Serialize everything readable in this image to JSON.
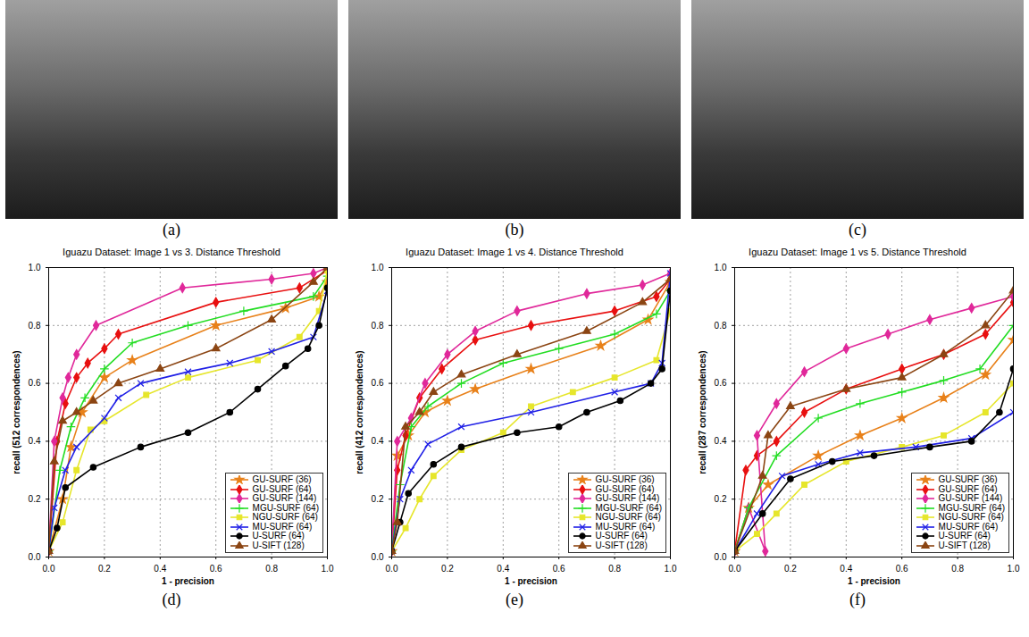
{
  "figure": {
    "image_panels": [
      "(a)",
      "(b)",
      "(c)"
    ]
  },
  "chart_data": [
    {
      "type": "line",
      "caption": "(d)",
      "title": "Iguazu Dataset: Image 1 vs 3. Distance Threshold",
      "x_label": "1 - precision",
      "y_label": "recall (512 correspondences)",
      "xlim": [
        0,
        1
      ],
      "ylim": [
        0,
        1
      ],
      "xticks": [
        0,
        0.2,
        0.4,
        0.6,
        0.8,
        1
      ],
      "yticks": [
        0,
        0.2,
        0.4,
        0.6,
        0.8,
        1
      ],
      "grid": true,
      "legend": "lower right",
      "series": [
        {
          "name": "GU-SURF (36)",
          "color": "#e8811a",
          "marker": "star",
          "x": [
            0,
            0.05,
            0.08,
            0.12,
            0.2,
            0.3,
            0.6,
            0.85,
            0.97,
            1
          ],
          "values": [
            0.02,
            0.2,
            0.38,
            0.5,
            0.62,
            0.68,
            0.8,
            0.86,
            0.9,
            0.95
          ]
        },
        {
          "name": "GU-SURF (64)",
          "color": "#e81010",
          "marker": "diamond",
          "x": [
            0,
            0.03,
            0.06,
            0.1,
            0.14,
            0.2,
            0.25,
            0.6,
            0.9,
            1
          ],
          "values": [
            0.02,
            0.4,
            0.53,
            0.62,
            0.67,
            0.72,
            0.77,
            0.88,
            0.93,
            0.99
          ]
        },
        {
          "name": "GU-SURF (144)",
          "color": "#e0289a",
          "marker": "diamond",
          "x": [
            0,
            0.02,
            0.05,
            0.07,
            0.1,
            0.17,
            0.48,
            0.8,
            0.95,
            1
          ],
          "values": [
            0.02,
            0.4,
            0.55,
            0.62,
            0.7,
            0.8,
            0.93,
            0.96,
            0.98,
            1
          ]
        },
        {
          "name": "MGU-SURF (64)",
          "color": "#22dd22",
          "marker": "plus",
          "x": [
            0,
            0.04,
            0.08,
            0.13,
            0.2,
            0.3,
            0.5,
            0.7,
            0.95,
            1
          ],
          "values": [
            0.02,
            0.3,
            0.45,
            0.55,
            0.65,
            0.74,
            0.8,
            0.85,
            0.9,
            0.97
          ]
        },
        {
          "name": "NGU-SURF (64)",
          "color": "#e6e62b",
          "marker": "square",
          "x": [
            0,
            0.05,
            0.1,
            0.15,
            0.2,
            0.35,
            0.5,
            0.75,
            0.9,
            0.97,
            1
          ],
          "values": [
            0.02,
            0.12,
            0.3,
            0.44,
            0.47,
            0.56,
            0.62,
            0.68,
            0.76,
            0.85,
            0.99
          ]
        },
        {
          "name": "MU-SURF (64)",
          "color": "#1f1fe6",
          "marker": "times",
          "x": [
            0,
            0.02,
            0.06,
            0.1,
            0.2,
            0.25,
            0.33,
            0.5,
            0.65,
            0.8,
            0.95,
            1
          ],
          "values": [
            0.02,
            0.17,
            0.3,
            0.38,
            0.48,
            0.55,
            0.6,
            0.64,
            0.67,
            0.71,
            0.76,
            0.92
          ]
        },
        {
          "name": "U-SURF (64)",
          "color": "#000000",
          "marker": "circle",
          "x": [
            0,
            0.03,
            0.06,
            0.16,
            0.33,
            0.5,
            0.65,
            0.75,
            0.85,
            0.93,
            0.97,
            1
          ],
          "values": [
            0.02,
            0.1,
            0.24,
            0.31,
            0.38,
            0.43,
            0.5,
            0.58,
            0.66,
            0.72,
            0.8,
            0.93
          ]
        },
        {
          "name": "U-SIFT (128)",
          "color": "#8b4513",
          "marker": "triangle",
          "x": [
            0,
            0.02,
            0.05,
            0.1,
            0.16,
            0.25,
            0.4,
            0.6,
            0.8,
            0.95,
            1
          ],
          "values": [
            0.02,
            0.33,
            0.47,
            0.5,
            0.54,
            0.6,
            0.65,
            0.72,
            0.82,
            0.95,
            1
          ]
        }
      ]
    },
    {
      "type": "line",
      "caption": "(e)",
      "title": "Iguazu Dataset: Image 1 vs 4. Distance Threshold",
      "x_label": "1 - precision",
      "y_label": "recall (412 correspondences)",
      "xlim": [
        0,
        1
      ],
      "ylim": [
        0,
        1
      ],
      "xticks": [
        0,
        0.2,
        0.4,
        0.6,
        0.8,
        1
      ],
      "yticks": [
        0,
        0.2,
        0.4,
        0.6,
        0.8,
        1
      ],
      "grid": true,
      "legend": "lower right",
      "series": [
        {
          "name": "GU-SURF (36)",
          "color": "#e8811a",
          "marker": "star",
          "x": [
            0,
            0.02,
            0.06,
            0.12,
            0.2,
            0.3,
            0.5,
            0.75,
            0.92,
            1
          ],
          "values": [
            0.02,
            0.35,
            0.42,
            0.5,
            0.54,
            0.58,
            0.65,
            0.73,
            0.82,
            0.95
          ]
        },
        {
          "name": "GU-SURF (64)",
          "color": "#e81010",
          "marker": "diamond",
          "x": [
            0,
            0.02,
            0.05,
            0.1,
            0.18,
            0.3,
            0.5,
            0.8,
            0.95,
            1
          ],
          "values": [
            0.02,
            0.3,
            0.42,
            0.55,
            0.65,
            0.75,
            0.8,
            0.85,
            0.9,
            0.96
          ]
        },
        {
          "name": "GU-SURF (144)",
          "color": "#e0289a",
          "marker": "diamond",
          "x": [
            0,
            0.02,
            0.07,
            0.12,
            0.2,
            0.3,
            0.45,
            0.7,
            0.9,
            1
          ],
          "values": [
            0.02,
            0.4,
            0.48,
            0.6,
            0.7,
            0.78,
            0.85,
            0.91,
            0.94,
            0.98
          ]
        },
        {
          "name": "MGU-SURF (64)",
          "color": "#22dd22",
          "marker": "plus",
          "x": [
            0,
            0.03,
            0.07,
            0.13,
            0.25,
            0.4,
            0.6,
            0.8,
            0.95,
            1
          ],
          "values": [
            0.02,
            0.25,
            0.45,
            0.52,
            0.6,
            0.67,
            0.72,
            0.77,
            0.84,
            0.92
          ]
        },
        {
          "name": "NGU-SURF (64)",
          "color": "#e6e62b",
          "marker": "square",
          "x": [
            0,
            0.05,
            0.1,
            0.15,
            0.25,
            0.4,
            0.5,
            0.65,
            0.8,
            0.95,
            1
          ],
          "values": [
            0.02,
            0.1,
            0.2,
            0.28,
            0.37,
            0.43,
            0.52,
            0.57,
            0.62,
            0.68,
            0.85
          ]
        },
        {
          "name": "MU-SURF (64)",
          "color": "#1f1fe6",
          "marker": "times",
          "x": [
            0,
            0.03,
            0.07,
            0.13,
            0.25,
            0.5,
            0.8,
            0.93,
            0.97,
            1
          ],
          "values": [
            0.02,
            0.2,
            0.3,
            0.39,
            0.45,
            0.5,
            0.57,
            0.6,
            0.67,
            0.98
          ]
        },
        {
          "name": "U-SURF (64)",
          "color": "#000000",
          "marker": "circle",
          "x": [
            0,
            0.03,
            0.06,
            0.15,
            0.25,
            0.45,
            0.6,
            0.7,
            0.82,
            0.93,
            0.97,
            1
          ],
          "values": [
            0.02,
            0.12,
            0.22,
            0.32,
            0.38,
            0.43,
            0.45,
            0.5,
            0.54,
            0.6,
            0.65,
            0.92
          ]
        },
        {
          "name": "U-SIFT (128)",
          "color": "#8b4513",
          "marker": "triangle",
          "x": [
            0,
            0.02,
            0.05,
            0.1,
            0.15,
            0.25,
            0.45,
            0.7,
            0.9,
            1
          ],
          "values": [
            0.02,
            0.12,
            0.45,
            0.5,
            0.57,
            0.63,
            0.7,
            0.78,
            0.88,
            0.96
          ]
        }
      ]
    },
    {
      "type": "line",
      "caption": "(f)",
      "title": "Iguazu Dataset: Image 1 vs 5. Distance Threshold",
      "x_label": "1 - precision",
      "y_label": "recall (287 correspondences)",
      "xlim": [
        0,
        1
      ],
      "ylim": [
        0,
        1
      ],
      "xticks": [
        0,
        0.2,
        0.4,
        0.6,
        0.8,
        1
      ],
      "yticks": [
        0,
        0.2,
        0.4,
        0.6,
        0.8,
        1
      ],
      "grid": true,
      "legend": "lower right",
      "series": [
        {
          "name": "GU-SURF (36)",
          "color": "#e8811a",
          "marker": "star",
          "x": [
            0,
            0.05,
            0.12,
            0.3,
            0.45,
            0.6,
            0.75,
            0.9,
            1
          ],
          "values": [
            0.02,
            0.17,
            0.25,
            0.35,
            0.42,
            0.48,
            0.55,
            0.63,
            0.75
          ]
        },
        {
          "name": "GU-SURF (64)",
          "color": "#e81010",
          "marker": "diamond",
          "x": [
            0,
            0.04,
            0.08,
            0.15,
            0.25,
            0.4,
            0.6,
            0.75,
            0.9,
            1
          ],
          "values": [
            0.02,
            0.3,
            0.35,
            0.4,
            0.5,
            0.58,
            0.65,
            0.7,
            0.77,
            0.88
          ]
        },
        {
          "name": "GU-SURF (144)",
          "color": "#e0289a",
          "marker": "diamond",
          "x": [
            0,
            0.05,
            0.11,
            0.08,
            0.15,
            0.25,
            0.4,
            0.55,
            0.7,
            0.85,
            1
          ],
          "values": [
            0.02,
            0.17,
            0.02,
            0.42,
            0.53,
            0.64,
            0.72,
            0.77,
            0.82,
            0.86,
            0.9
          ]
        },
        {
          "name": "MGU-SURF (64)",
          "color": "#22dd22",
          "marker": "plus",
          "x": [
            0,
            0.05,
            0.15,
            0.3,
            0.45,
            0.6,
            0.75,
            0.88,
            1
          ],
          "values": [
            0.02,
            0.17,
            0.35,
            0.48,
            0.53,
            0.57,
            0.61,
            0.65,
            0.8
          ]
        },
        {
          "name": "NGU-SURF (64)",
          "color": "#e6e62b",
          "marker": "square",
          "x": [
            0,
            0.08,
            0.15,
            0.25,
            0.4,
            0.6,
            0.75,
            0.9,
            1
          ],
          "values": [
            0.02,
            0.08,
            0.15,
            0.25,
            0.33,
            0.38,
            0.42,
            0.5,
            0.6
          ]
        },
        {
          "name": "MU-SURF (64)",
          "color": "#1f1fe6",
          "marker": "times",
          "x": [
            0,
            0.08,
            0.17,
            0.3,
            0.45,
            0.65,
            0.85,
            1
          ],
          "values": [
            0.02,
            0.15,
            0.28,
            0.32,
            0.36,
            0.38,
            0.41,
            0.5
          ]
        },
        {
          "name": "U-SURF (64)",
          "color": "#000000",
          "marker": "circle",
          "x": [
            0,
            0.1,
            0.2,
            0.35,
            0.5,
            0.7,
            0.85,
            0.95,
            1
          ],
          "values": [
            0.02,
            0.15,
            0.27,
            0.33,
            0.35,
            0.38,
            0.4,
            0.5,
            0.65
          ]
        },
        {
          "name": "U-SIFT (128)",
          "color": "#8b4513",
          "marker": "triangle",
          "x": [
            0,
            0.1,
            0.12,
            0.2,
            0.4,
            0.6,
            0.75,
            0.9,
            1
          ],
          "values": [
            0.02,
            0.28,
            0.42,
            0.52,
            0.58,
            0.62,
            0.7,
            0.8,
            0.92
          ]
        }
      ]
    }
  ]
}
